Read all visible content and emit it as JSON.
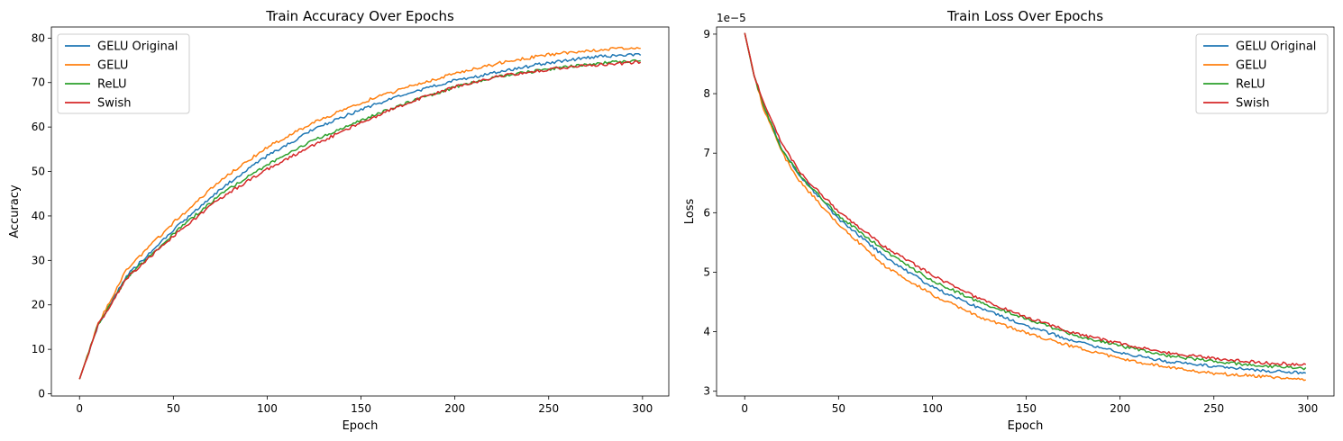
{
  "chart_data": [
    {
      "type": "line",
      "title": "Train Accuracy Over Epochs",
      "xlabel": "Epoch",
      "ylabel": "Accuracy",
      "xlim": [
        -15,
        314
      ],
      "ylim": [
        -0.5,
        82.5
      ],
      "xticks": [
        0,
        50,
        100,
        150,
        200,
        250,
        300
      ],
      "yticks": [
        0,
        10,
        20,
        30,
        40,
        50,
        60,
        70,
        80
      ],
      "offset_text": "",
      "grid": false,
      "legend_position": "upper left",
      "x": [
        0,
        10,
        25,
        50,
        75,
        100,
        125,
        150,
        175,
        200,
        225,
        250,
        275,
        299
      ],
      "series": [
        {
          "name": "GELU Original",
          "color": "#1f77b4",
          "values": [
            3.3,
            15.5,
            26.5,
            36.8,
            46.0,
            53.5,
            59.5,
            64.0,
            67.5,
            70.5,
            72.5,
            74.5,
            75.8,
            76.3
          ]
        },
        {
          "name": "GELU",
          "color": "#ff7f0e",
          "values": [
            3.3,
            15.8,
            28.0,
            38.5,
            48.0,
            55.5,
            61.0,
            65.5,
            69.0,
            72.0,
            74.5,
            76.3,
            77.3,
            78.0
          ]
        },
        {
          "name": "ReLU",
          "color": "#2ca02c",
          "values": [
            3.3,
            15.7,
            26.0,
            36.0,
            44.8,
            51.5,
            57.0,
            61.5,
            65.5,
            69.0,
            71.5,
            73.0,
            74.3,
            75.0
          ]
        },
        {
          "name": "Swish",
          "color": "#d62728",
          "values": [
            3.3,
            15.5,
            26.0,
            35.5,
            44.0,
            50.5,
            56.0,
            61.0,
            65.5,
            69.0,
            71.5,
            73.0,
            74.0,
            74.6
          ]
        }
      ]
    },
    {
      "type": "line",
      "title": "Train Loss Over Epochs",
      "xlabel": "Epoch",
      "ylabel": "Loss",
      "xlim": [
        -15,
        314
      ],
      "ylim": [
        2.92,
        9.12
      ],
      "xticks": [
        0,
        50,
        100,
        150,
        200,
        250,
        300
      ],
      "yticks": [
        3,
        4,
        5,
        6,
        7,
        8,
        9
      ],
      "offset_text": "1e−5",
      "grid": false,
      "legend_position": "upper right",
      "x": [
        0,
        5,
        10,
        20,
        30,
        50,
        75,
        100,
        125,
        150,
        175,
        200,
        225,
        250,
        275,
        299
      ],
      "series": [
        {
          "name": "GELU Original",
          "color": "#1f77b4",
          "values": [
            9.02,
            8.3,
            7.8,
            7.05,
            6.6,
            5.9,
            5.25,
            4.75,
            4.4,
            4.1,
            3.85,
            3.65,
            3.5,
            3.42,
            3.35,
            3.3
          ]
        },
        {
          "name": "GELU",
          "color": "#ff7f0e",
          "values": [
            9.02,
            8.3,
            7.75,
            7.0,
            6.5,
            5.8,
            5.1,
            4.62,
            4.25,
            3.98,
            3.75,
            3.55,
            3.4,
            3.3,
            3.25,
            3.2
          ]
        },
        {
          "name": "ReLU",
          "color": "#2ca02c",
          "values": [
            9.02,
            8.3,
            7.8,
            7.05,
            6.6,
            5.95,
            5.35,
            4.85,
            4.5,
            4.22,
            3.95,
            3.76,
            3.6,
            3.5,
            3.43,
            3.38
          ]
        },
        {
          "name": "Swish",
          "color": "#d62728",
          "values": [
            9.02,
            8.32,
            7.85,
            7.15,
            6.65,
            6.02,
            5.42,
            4.95,
            4.55,
            4.25,
            3.98,
            3.8,
            3.65,
            3.55,
            3.48,
            3.45
          ]
        }
      ]
    }
  ]
}
